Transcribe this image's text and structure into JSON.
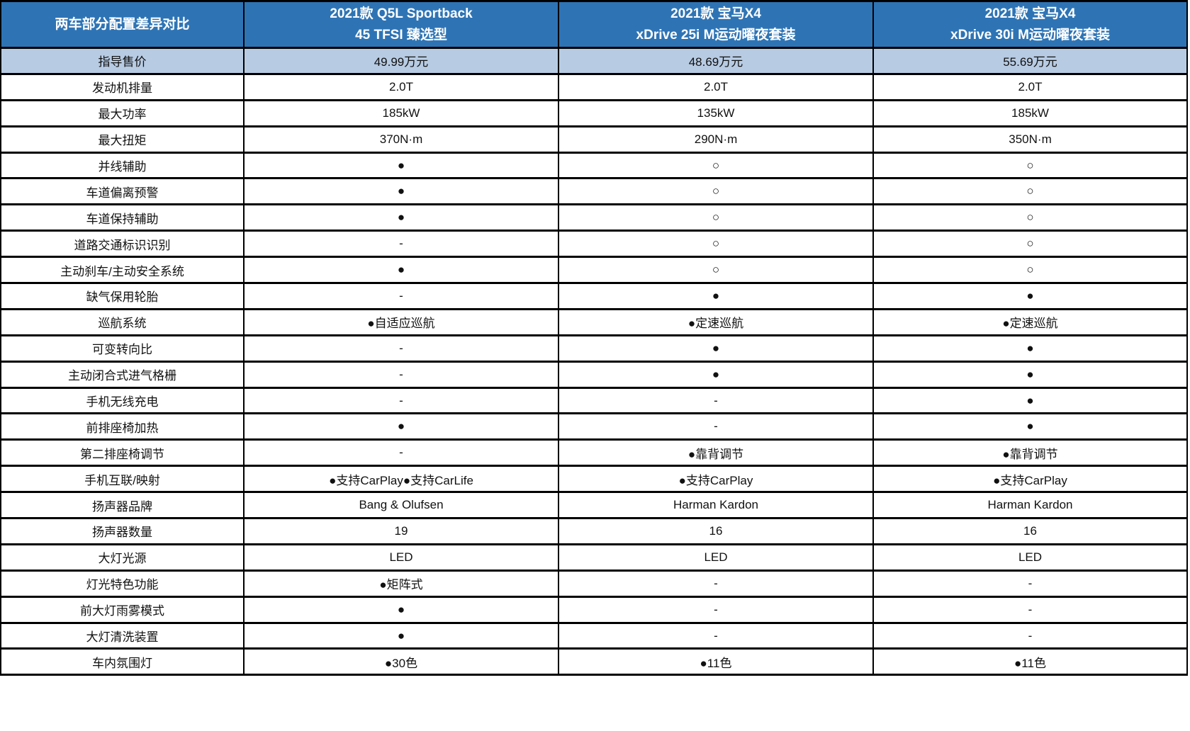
{
  "colors": {
    "header_bg": "#2E74B5",
    "header_text": "#FFFFFF",
    "highlight_row_bg": "#B7CBE3",
    "border": "#000000",
    "mark_filled": "#000000"
  },
  "table": {
    "header": {
      "title": "两车部分配置差异对比",
      "cols": [
        {
          "line1": "2021款 Q5L Sportback",
          "line2": "45 TFSI 臻选型"
        },
        {
          "line1": "2021款 宝马X4",
          "line2": "xDrive 25i M运动曜夜套装"
        },
        {
          "line1": "2021款 宝马X4",
          "line2": "xDrive 30i M运动曜夜套装"
        }
      ]
    },
    "legend": {
      "filled_mark": "●",
      "hollow_mark": "○",
      "absent_mark": "-"
    },
    "rows": [
      {
        "label": "指导售价",
        "v1": "49.99万元",
        "v2": "48.69万元",
        "v3": "55.69万元",
        "highlight": true
      },
      {
        "label": "发动机排量",
        "v1": "2.0T",
        "v2": "2.0T",
        "v3": "2.0T"
      },
      {
        "label": "最大功率",
        "v1": "185kW",
        "v2": "135kW",
        "v3": "185kW"
      },
      {
        "label": "最大扭矩",
        "v1": "370N·m",
        "v2": "290N·m",
        "v3": "350N·m"
      },
      {
        "label": "并线辅助",
        "v1": "●",
        "v2": "○",
        "v3": "○"
      },
      {
        "label": "车道偏离预警",
        "v1": "●",
        "v2": "○",
        "v3": "○"
      },
      {
        "label": "车道保持辅助",
        "v1": "●",
        "v2": "○",
        "v3": "○"
      },
      {
        "label": "道路交通标识识别",
        "v1": "-",
        "v2": "○",
        "v3": "○"
      },
      {
        "label": "主动刹车/主动安全系统",
        "v1": "●",
        "v2": "○",
        "v3": "○"
      },
      {
        "label": "缺气保用轮胎",
        "v1": "-",
        "v2": "●",
        "v3": "●"
      },
      {
        "label": "巡航系统",
        "v1": "●自适应巡航",
        "v2": "●定速巡航",
        "v3": "●定速巡航"
      },
      {
        "label": "可变转向比",
        "v1": "-",
        "v2": "●",
        "v3": "●"
      },
      {
        "label": "主动闭合式进气格栅",
        "v1": "-",
        "v2": "●",
        "v3": "●"
      },
      {
        "label": "手机无线充电",
        "v1": "-",
        "v2": "-",
        "v3": "●"
      },
      {
        "label": "前排座椅加热",
        "v1": "●",
        "v2": "-",
        "v3": "●"
      },
      {
        "label": "第二排座椅调节",
        "v1": "-",
        "v2": "●靠背调节",
        "v3": "●靠背调节"
      },
      {
        "label": "手机互联/映射",
        "v1": "●支持CarPlay●支持CarLife",
        "v2": "●支持CarPlay",
        "v3": "●支持CarPlay"
      },
      {
        "label": "扬声器品牌",
        "v1": "Bang & Olufsen",
        "v2": "Harman Kardon",
        "v3": "Harman Kardon"
      },
      {
        "label": "扬声器数量",
        "v1": "19",
        "v2": "16",
        "v3": "16"
      },
      {
        "label": "大灯光源",
        "v1": "LED",
        "v2": "LED",
        "v3": "LED"
      },
      {
        "label": "灯光特色功能",
        "v1": "●矩阵式",
        "v2": "-",
        "v3": "-"
      },
      {
        "label": "前大灯雨雾模式",
        "v1": "●",
        "v2": "-",
        "v3": "-"
      },
      {
        "label": "大灯清洗装置",
        "v1": "●",
        "v2": "-",
        "v3": "-"
      },
      {
        "label": "车内氛围灯",
        "v1": "●30色",
        "v2": "●11色",
        "v3": "●11色"
      }
    ]
  },
  "chart_data": {
    "type": "table",
    "title": "两车部分配置差异对比",
    "columns": [
      "两车部分配置差异对比",
      "2021款 Q5L Sportback 45 TFSI 臻选型",
      "2021款 宝马X4 xDrive 25i M运动曜夜套装",
      "2021款 宝马X4 xDrive 30i M运动曜夜套装"
    ],
    "rows": [
      [
        "指导售价",
        "49.99万元",
        "48.69万元",
        "55.69万元"
      ],
      [
        "发动机排量",
        "2.0T",
        "2.0T",
        "2.0T"
      ],
      [
        "最大功率",
        "185kW",
        "135kW",
        "185kW"
      ],
      [
        "最大扭矩",
        "370N·m",
        "290N·m",
        "350N·m"
      ],
      [
        "并线辅助",
        "●",
        "○",
        "○"
      ],
      [
        "车道偏离预警",
        "●",
        "○",
        "○"
      ],
      [
        "车道保持辅助",
        "●",
        "○",
        "○"
      ],
      [
        "道路交通标识识别",
        "-",
        "○",
        "○"
      ],
      [
        "主动刹车/主动安全系统",
        "●",
        "○",
        "○"
      ],
      [
        "缺气保用轮胎",
        "-",
        "●",
        "●"
      ],
      [
        "巡航系统",
        "●自适应巡航",
        "●定速巡航",
        "●定速巡航"
      ],
      [
        "可变转向比",
        "-",
        "●",
        "●"
      ],
      [
        "主动闭合式进气格栅",
        "-",
        "●",
        "●"
      ],
      [
        "手机无线充电",
        "-",
        "-",
        "●"
      ],
      [
        "前排座椅加热",
        "●",
        "-",
        "●"
      ],
      [
        "第二排座椅调节",
        "-",
        "●靠背调节",
        "●靠背调节"
      ],
      [
        "手机互联/映射",
        "●支持CarPlay●支持CarLife",
        "●支持CarPlay",
        "●支持CarPlay"
      ],
      [
        "扬声器品牌",
        "Bang & Olufsen",
        "Harman Kardon",
        "Harman Kardon"
      ],
      [
        "扬声器数量",
        "19",
        "16",
        "16"
      ],
      [
        "大灯光源",
        "LED",
        "LED",
        "LED"
      ],
      [
        "灯光特色功能",
        "●矩阵式",
        "-",
        "-"
      ],
      [
        "前大灯雨雾模式",
        "●",
        "-",
        "-"
      ],
      [
        "大灯清洗装置",
        "●",
        "-",
        "-"
      ],
      [
        "车内氛围灯",
        "●30色",
        "●11色",
        "●11色"
      ]
    ],
    "notes": "● = equipped, ○ = not equipped, - = not available/none; first data row (指导售价) is highlighted light blue"
  }
}
